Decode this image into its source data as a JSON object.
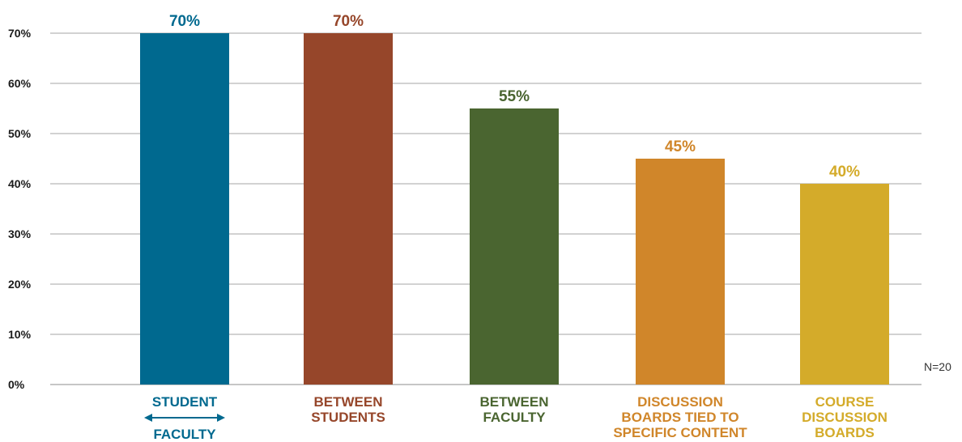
{
  "chart_data": {
    "type": "bar",
    "categories": [
      {
        "lines": [
          "STUDENT",
          "FACULTY"
        ],
        "arrow": true
      },
      {
        "lines": [
          "BETWEEN",
          "STUDENTS"
        ],
        "arrow": false
      },
      {
        "lines": [
          "BETWEEN",
          "FACULTY"
        ],
        "arrow": false
      },
      {
        "lines": [
          "DISCUSSION",
          "BOARDS TIED TO",
          "SPECIFIC CONTENT"
        ],
        "arrow": false
      },
      {
        "lines": [
          "COURSE",
          "DISCUSSION",
          "BOARDS"
        ],
        "arrow": false
      }
    ],
    "values": [
      70,
      70,
      55,
      45,
      40
    ],
    "value_labels": [
      "70%",
      "70%",
      "55%",
      "45%",
      "40%"
    ],
    "colors": [
      "#00698f",
      "#96462a",
      "#4a6530",
      "#d0862a",
      "#d4ab2a"
    ],
    "yticks": [
      {
        "v": 0,
        "label": "0%"
      },
      {
        "v": 10,
        "label": "10%"
      },
      {
        "v": 20,
        "label": "20%"
      },
      {
        "v": 30,
        "label": "30%"
      },
      {
        "v": 40,
        "label": "40%"
      },
      {
        "v": 50,
        "label": "50%"
      },
      {
        "v": 60,
        "label": "60%"
      },
      {
        "v": 70,
        "label": "70%"
      }
    ],
    "ylim": [
      0,
      70
    ],
    "grid": true,
    "title": "",
    "xlabel": "",
    "ylabel": ""
  },
  "note": "N=20"
}
